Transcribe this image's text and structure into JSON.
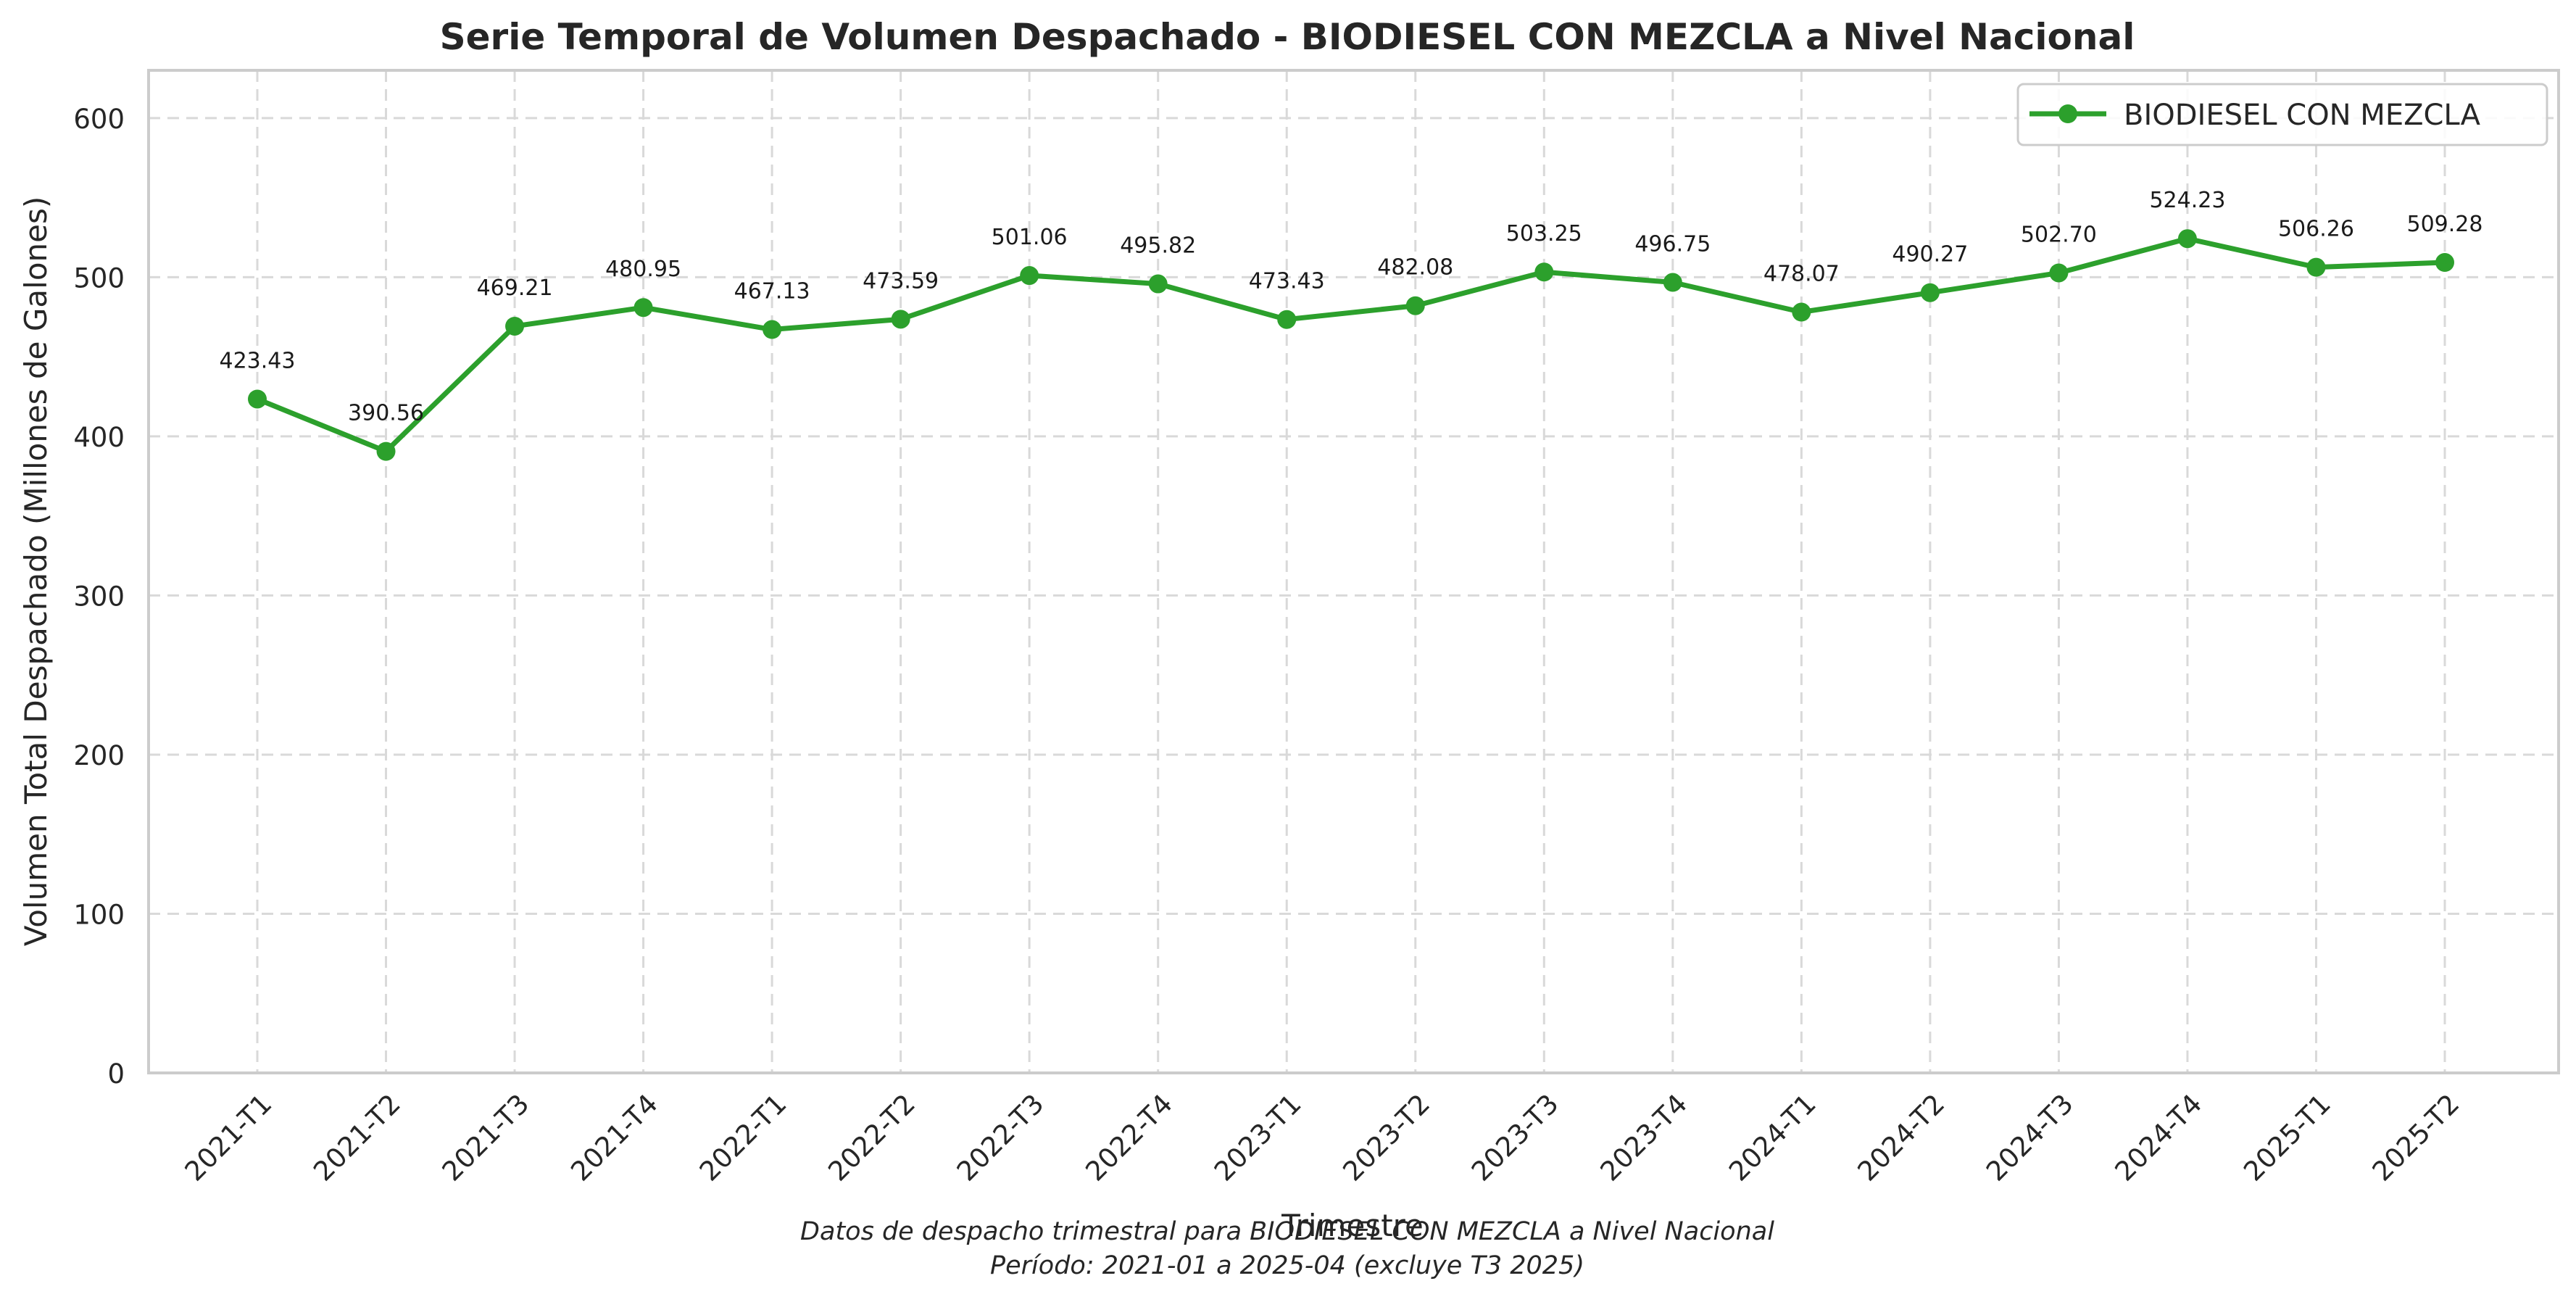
{
  "chart_data": {
    "type": "line",
    "title": "Serie Temporal de Volumen Despachado - BIODIESEL CON MEZCLA a Nivel Nacional",
    "xlabel": "Trimestre",
    "ylabel": "Volumen Total Despachado (Millones de Galones)",
    "ylim": [
      0,
      630
    ],
    "yticks": [
      0,
      100,
      200,
      300,
      400,
      500,
      600
    ],
    "grid": true,
    "legend_position": "top-right",
    "categories": [
      "2021-T1",
      "2021-T2",
      "2021-T3",
      "2021-T4",
      "2022-T1",
      "2022-T2",
      "2022-T3",
      "2022-T4",
      "2023-T1",
      "2023-T2",
      "2023-T3",
      "2023-T4",
      "2024-T1",
      "2024-T2",
      "2024-T3",
      "2024-T4",
      "2025-T1",
      "2025-T2"
    ],
    "series": [
      {
        "name": "BIODIESEL CON MEZCLA",
        "color": "#2ca02c",
        "values": [
          423.43,
          390.56,
          469.21,
          480.95,
          467.13,
          473.59,
          501.06,
          495.82,
          473.43,
          482.08,
          503.25,
          496.75,
          478.07,
          490.27,
          502.7,
          524.23,
          506.26,
          509.28
        ],
        "labels": [
          "423.43",
          "390.56",
          "469.21",
          "480.95",
          "467.13",
          "473.59",
          "501.06",
          "495.82",
          "473.43",
          "482.08",
          "503.25",
          "496.75",
          "478.07",
          "490.27",
          "502.70",
          "524.23",
          "506.26",
          "509.28"
        ]
      }
    ],
    "caption_lines": [
      "Datos de despacho trimestral para BIODIESEL CON MEZCLA a Nivel Nacional",
      "Período: 2021-01 a 2025-04 (excluye T3 2025)"
    ]
  }
}
